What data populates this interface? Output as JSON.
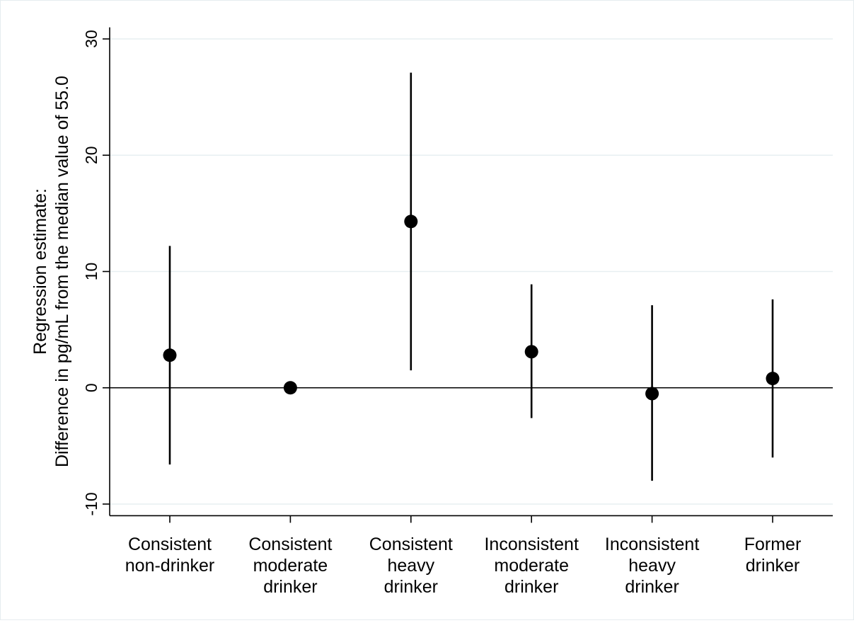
{
  "chart_data": {
    "type": "scatter",
    "title": "",
    "xlabel": "",
    "ylabel_lines": [
      "Regression estimate:",
      "Difference in pg/mL from the median value of 55.0"
    ],
    "ylim": [
      -11,
      31
    ],
    "yticks": [
      -10,
      0,
      10,
      20,
      30
    ],
    "ytick_labels": [
      "-10",
      "0",
      "10",
      "20",
      "30"
    ],
    "grid": true,
    "legend": "none",
    "reference_line": 0,
    "categories": [
      {
        "lines": [
          "Consistent",
          "non-drinker"
        ],
        "estimate": 2.8,
        "ci_low": -6.6,
        "ci_high": 12.2
      },
      {
        "lines": [
          "Consistent",
          "moderate",
          "drinker"
        ],
        "estimate": 0.0,
        "ci_low": null,
        "ci_high": null
      },
      {
        "lines": [
          "Consistent",
          "heavy",
          "drinker"
        ],
        "estimate": 14.3,
        "ci_low": 1.5,
        "ci_high": 27.1
      },
      {
        "lines": [
          "Inconsistent",
          "moderate",
          "drinker"
        ],
        "estimate": 3.1,
        "ci_low": -2.6,
        "ci_high": 8.9
      },
      {
        "lines": [
          "Inconsistent",
          "heavy",
          "drinker"
        ],
        "estimate": -0.5,
        "ci_low": -8.0,
        "ci_high": 7.1
      },
      {
        "lines": [
          "Former",
          "drinker"
        ],
        "estimate": 0.8,
        "ci_low": -6.0,
        "ci_high": 7.6
      }
    ],
    "colors": {
      "marker": "#000000",
      "gridline": "#e7eff1",
      "axis": "#000000"
    }
  }
}
